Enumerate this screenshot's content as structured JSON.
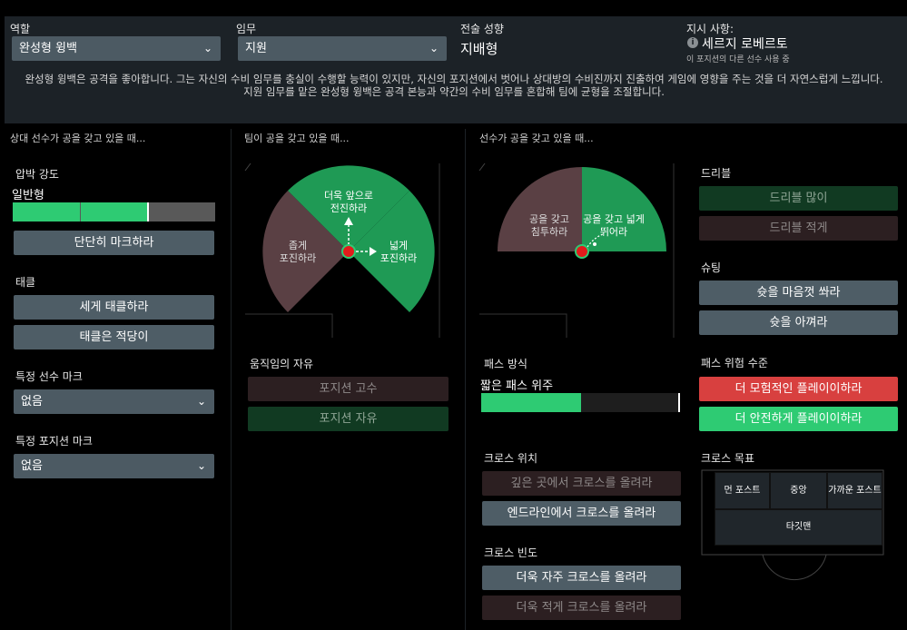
{
  "header": {
    "role_label": "역할",
    "role_value": "완성형 윙백",
    "duty_label": "임무",
    "duty_value": "지원",
    "style_label": "전술 성향",
    "style_value": "지배형",
    "instruction_label": "지시 사항:",
    "instruction_value": "세르지 로베르토",
    "instruction_note": "이 포지션의 다른 선수 사용 중",
    "description_line1": "완성형 윙백은 공격을 좋아합니다. 그는 자신의 수비 임무를 충실이 수행할 능력이 있지만, 자신의 포지션에서 벗어나 상대방의 수비진까지 진출하여 게임에 영향을 주는 것을 더 자연스럽게 느낍니다.",
    "description_line2": "지원 임무를 맡은 완성형 윙백은 공격 본능과 약간의 수비 임무를 혼합해 팀에 균형을 조절합니다."
  },
  "col1": {
    "title": "상대 선수가 공을 갖고 있을 때...",
    "press_label": "압박 강도",
    "press_value": "일반형",
    "press_level": 0.67,
    "press_btn": "단단히 마크하라",
    "tackle_label": "태클",
    "tackle_btn1": "세게 태클하라",
    "tackle_btn2": "태클은 적당이",
    "mark_player_label": "특정 선수 마크",
    "mark_player_value": "없음",
    "mark_position_label": "특정 포지션 마크",
    "mark_position_value": "없음"
  },
  "col2": {
    "title": "팀이 공을 갖고 있을 때...",
    "zone_forward": "더욱 앞으로\n전진하라",
    "zone_narrow": "좁게\n포진하라",
    "zone_wide": "넓게\n포진하라",
    "freedom_label": "움직임의 자유",
    "freedom_btn1": "포지션 고수",
    "freedom_btn2": "포지션 자유"
  },
  "col3": {
    "title": "선수가 공을 갖고 있을 때...",
    "zone_left": "공을 갖고\n침투하라",
    "zone_right": "공을 갖고 넓게\n뛰어라",
    "pass_label": "패스 방식",
    "pass_value": "짧은 패스 위주",
    "pass_level": 0.5,
    "cross_pos_label": "크로스 위치",
    "cross_pos_btn1": "깊은 곳에서 크로스를 올려라",
    "cross_pos_btn2": "엔드라인에서 크로스를 올려라",
    "cross_freq_label": "크로스 빈도",
    "cross_freq_btn1": "더욱 자주 크로스를 올려라",
    "cross_freq_btn2": "더욱 적게 크로스를 올려라"
  },
  "col4": {
    "dribble_label": "드리블",
    "dribble_btn1": "드리블 많이",
    "dribble_btn2": "드리블 적게",
    "shoot_label": "슈팅",
    "shoot_btn1": "슛을 마음껏 쏴라",
    "shoot_btn2": "슛을 아껴라",
    "risk_label": "패스 위험 수준",
    "risk_btn1": "더 모험적인 플레이이하라",
    "risk_btn2": "더 안전하게 플레이이하라",
    "cross_target_label": "크로스 목표",
    "target_far": "먼 포스트",
    "target_center": "중앙",
    "target_near": "가까운 포스트",
    "target_man": "타깃맨"
  },
  "colors": {
    "green": "#2ecb73",
    "darkgreen": "#1f9a55",
    "maroon": "#5a4044",
    "red": "#d8403f",
    "gray": "#4e5d66"
  }
}
